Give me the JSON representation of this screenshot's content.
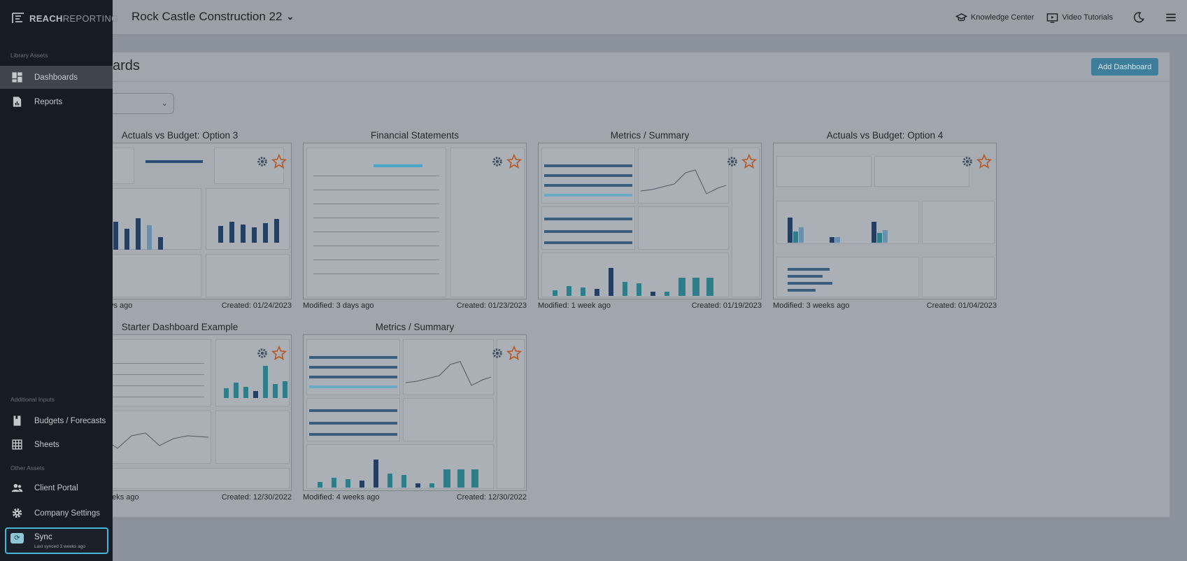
{
  "app": {
    "logo_bold": "REACH",
    "logo_thin": "REPORTING",
    "company_name": "Rock Castle Construction 22",
    "company_chevron": "chevron-down-icon"
  },
  "topbar": {
    "knowledge_center": "Knowledge Center",
    "video_tutorials": "Video Tutorials"
  },
  "sidebar": {
    "section_library": "Library Assets",
    "section_additional": "Additional Inputs",
    "section_other": "Other Assets",
    "items": [
      {
        "label": "Dashboards",
        "icon": "dashboard-icon"
      },
      {
        "label": "Reports",
        "icon": "report-icon"
      },
      {
        "label": "Budgets / Forecasts",
        "icon": "budget-icon"
      },
      {
        "label": "Sheets",
        "icon": "grid-icon"
      },
      {
        "label": "Client Portal",
        "icon": "users-icon"
      },
      {
        "label": "Company Settings",
        "icon": "gear-icon"
      }
    ],
    "sync": {
      "label": "Sync",
      "sub": "Last synced 3 weeks ago"
    }
  },
  "main": {
    "title": "ards",
    "add_button": "Add Dashboard",
    "cards": [
      {
        "title": "Actuals vs Budget: Option 3",
        "modified": "ys ago",
        "created": "Created: 01/24/2023"
      },
      {
        "title": "Financial Statements",
        "modified": "Modified: 3 days ago",
        "created": "Created: 01/23/2023"
      },
      {
        "title": "Metrics / Summary",
        "modified": "Modified: 1 week ago",
        "created": "Created: 01/19/2023"
      },
      {
        "title": "Actuals vs Budget: Option 4",
        "modified": "Modified: 3 weeks ago",
        "created": "Created: 01/04/2023"
      },
      {
        "title": "Starter Dashboard Example",
        "modified": "eeks ago",
        "created": "Created: 12/30/2022"
      },
      {
        "title": "Metrics / Summary",
        "modified": "Modified: 4 weeks ago",
        "created": "Created: 12/30/2022"
      }
    ]
  }
}
